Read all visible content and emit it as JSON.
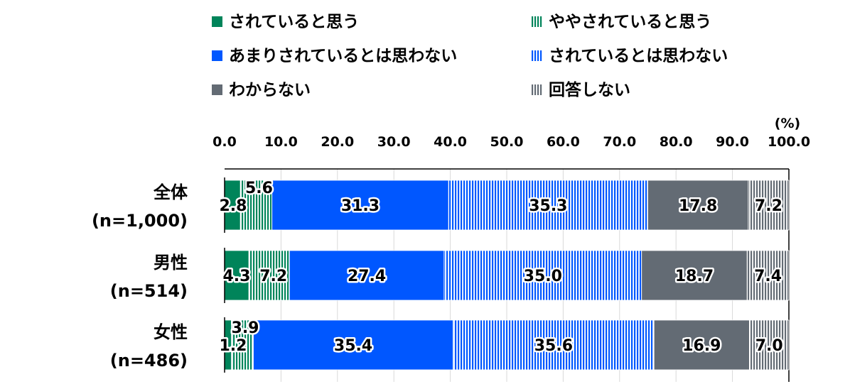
{
  "chart_data": {
    "type": "bar",
    "orientation": "horizontal",
    "stacked": true,
    "unit_label": "(%)",
    "xlim": [
      0,
      100
    ],
    "x_ticks": [
      "0.0",
      "10.0",
      "20.0",
      "30.0",
      "40.0",
      "50.0",
      "60.0",
      "70.0",
      "80.0",
      "90.0",
      "100.0"
    ],
    "categories": [
      {
        "name": "全体",
        "n": "(n=1,000)"
      },
      {
        "name": "男性",
        "n": "(n=514)"
      },
      {
        "name": "女性",
        "n": "(n=486)"
      }
    ],
    "series": [
      {
        "name": "されていると思う",
        "color": "#00845a",
        "pattern": "solid",
        "values": [
          2.8,
          4.3,
          1.2
        ],
        "labels": [
          "2.8",
          "4.3",
          "1.2"
        ]
      },
      {
        "name": "ややされていると思う",
        "color": "#00845a",
        "pattern": "stripes",
        "values": [
          5.6,
          7.2,
          3.9
        ],
        "labels": [
          "5.6",
          "7.2",
          "3.9"
        ]
      },
      {
        "name": "あまりされているとは思わない",
        "color": "#0057ff",
        "pattern": "solid",
        "values": [
          31.3,
          27.4,
          35.4
        ],
        "labels": [
          "31.3",
          "27.4",
          "35.4"
        ]
      },
      {
        "name": "されているとは思わない",
        "color": "#0057ff",
        "pattern": "stripes",
        "values": [
          35.3,
          35.0,
          35.6
        ],
        "labels": [
          "35.3",
          "35.0",
          "35.6"
        ]
      },
      {
        "name": "わからない",
        "color": "#636b74",
        "pattern": "solid",
        "values": [
          17.8,
          18.7,
          16.9
        ],
        "labels": [
          "17.8",
          "18.7",
          "16.9"
        ]
      },
      {
        "name": "回答しない",
        "color": "#636b74",
        "pattern": "stripes",
        "values": [
          7.2,
          7.4,
          7.0
        ],
        "labels": [
          "7.2",
          "7.4",
          "7.0"
        ]
      }
    ],
    "legend_position": "top",
    "grid": true
  }
}
